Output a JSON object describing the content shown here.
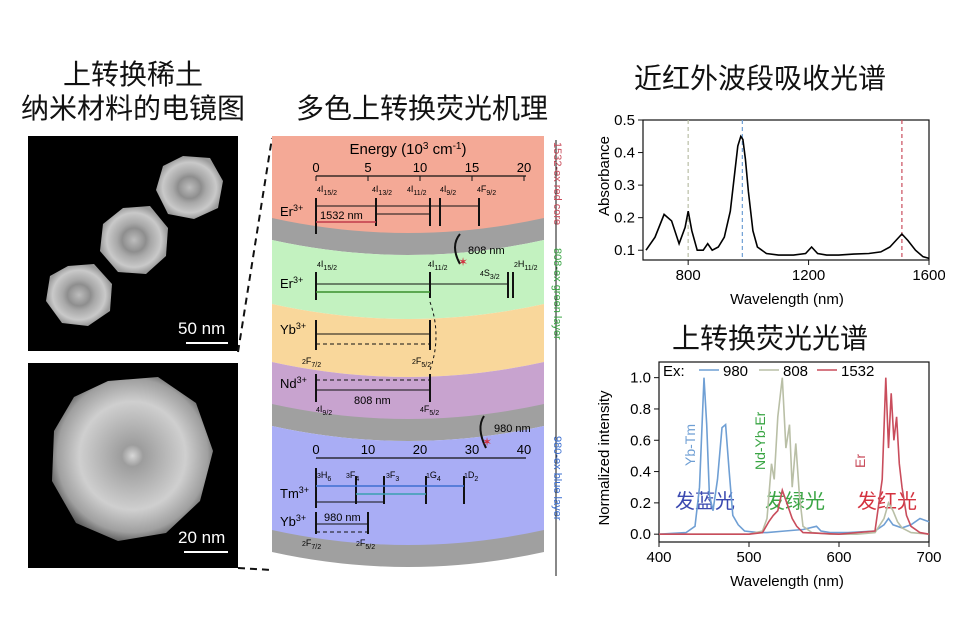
{
  "titles": {
    "em_line1": "上转换稀土",
    "em_line2": "纳米材料的电镜图",
    "mechanism": "多色上转换荧光机理",
    "absorption": "近红外波段吸收光谱",
    "emission": "上转换荧光光谱"
  },
  "em_images": {
    "top_scale": "50 nm",
    "bottom_scale": "20 nm"
  },
  "mechanism": {
    "energy_axis_label": "Energy (10",
    "energy_axis_sup": "3",
    "energy_axis_unit": " cm",
    "energy_axis_sup2": "-1",
    "energy_axis_close": ")",
    "top_ticks": [
      "0",
      "5",
      "10",
      "15",
      "20"
    ],
    "bottom_ticks": [
      "0",
      "10",
      "20",
      "30",
      "40"
    ],
    "ions": {
      "er_red": "Er",
      "er_green": "Er",
      "yb1": "Yb",
      "nd": "Nd",
      "tm": "Tm",
      "yb2": "Yb",
      "charge": "3+"
    },
    "levels_red": [
      "4",
      "I",
      "15/2",
      "4",
      "I",
      "13/2",
      "4",
      "I",
      "11/2",
      "4",
      "I",
      "9/2",
      "4",
      "F",
      "9/2"
    ],
    "label_1532": "1532 nm",
    "label_808_arrow": "808 nm",
    "levels_green": [
      "4",
      "I",
      "15/2",
      "4",
      "I",
      "11/2",
      "4",
      "S",
      "3/2",
      "2",
      "H",
      "11/2"
    ],
    "levels_yb": [
      "2",
      "F",
      "7/2",
      "2",
      "F",
      "5/2"
    ],
    "levels_nd": [
      "4",
      "I",
      "9/2",
      "4",
      "F",
      "5/2"
    ],
    "label_808": "808 nm",
    "label_980_arrow": "980 nm",
    "levels_tm": [
      "3",
      "H",
      "6",
      "3",
      "F",
      "4",
      "3",
      "F",
      "3",
      "1",
      "G",
      "4",
      "1",
      "D",
      "2"
    ],
    "label_980": "980 nm",
    "levels_yb2": [
      "2",
      "F",
      "7/2",
      "2",
      "F",
      "5/2"
    ],
    "side_labels": {
      "red": "1532-ex red core",
      "green": "808-ex green layer",
      "blue": "980-ex blue layer"
    }
  },
  "colors": {
    "red_layer": "#f4a996",
    "green_layer": "#c3f2c0",
    "yb_layer": "#f9d79b",
    "nd_layer": "#c8a3cf",
    "blue_layer": "#a9adf5",
    "gray_shell": "#a0a0a0",
    "abs_curve": "#000000",
    "ex_980": "#6f9fd4",
    "ex_808": "#b9bfa6",
    "ex_1532": "#c94d5c",
    "text_blue": "#3b49b0",
    "text_green": "#3aa544",
    "text_red": "#d4323f"
  },
  "chart_data": [
    {
      "type": "line",
      "title": "近红外波段吸收光谱",
      "xlabel": "Wavelength (nm)",
      "ylabel": "Absorbance",
      "xlim": [
        650,
        1600
      ],
      "ylim": [
        0.07,
        0.5
      ],
      "xticks": [
        "800",
        "1200",
        "1600"
      ],
      "yticks": [
        "0.1",
        "0.2",
        "0.3",
        "0.4",
        "0.5"
      ],
      "vlines": [
        800,
        980,
        1510
      ],
      "series": [
        {
          "x": [
            660,
            690,
            720,
            745,
            770,
            790,
            800,
            812,
            830,
            850,
            865,
            880,
            900,
            920,
            940,
            955,
            965,
            975,
            982,
            990,
            1000,
            1015,
            1030,
            1060,
            1100,
            1150,
            1190,
            1210,
            1230,
            1260,
            1300,
            1350,
            1400,
            1440,
            1470,
            1490,
            1510,
            1530,
            1555,
            1580,
            1600
          ],
          "y": [
            0.1,
            0.14,
            0.21,
            0.19,
            0.12,
            0.17,
            0.22,
            0.16,
            0.1,
            0.1,
            0.12,
            0.1,
            0.11,
            0.14,
            0.22,
            0.34,
            0.42,
            0.45,
            0.44,
            0.38,
            0.28,
            0.16,
            0.11,
            0.09,
            0.085,
            0.085,
            0.09,
            0.11,
            0.09,
            0.085,
            0.085,
            0.088,
            0.09,
            0.095,
            0.11,
            0.13,
            0.15,
            0.13,
            0.1,
            0.08,
            0.075
          ]
        }
      ]
    },
    {
      "type": "line",
      "title": "上转换荧光光谱",
      "xlabel": "Wavelength (nm)",
      "ylabel": "Normalized intensity",
      "xlim": [
        400,
        700
      ],
      "ylim": [
        -0.05,
        1.1
      ],
      "xticks": [
        "400",
        "500",
        "600",
        "700"
      ],
      "yticks": [
        "0.0",
        "0.2",
        "0.4",
        "0.6",
        "0.8",
        "1.0"
      ],
      "legend_prefix": "Ex:",
      "annotations": [
        "Yb-Tm",
        "Nd-Yb-Er",
        "Er",
        "发蓝光",
        "发绿光",
        "发红光"
      ],
      "series": [
        {
          "name": "980",
          "x": [
            400,
            430,
            440,
            445,
            450,
            453,
            456,
            460,
            465,
            470,
            474,
            478,
            482,
            488,
            495,
            510,
            520,
            540,
            560,
            575,
            580,
            590,
            610,
            640,
            650,
            655,
            660,
            670,
            680,
            690,
            700
          ],
          "y": [
            0.0,
            0.01,
            0.05,
            0.3,
            1.0,
            0.7,
            0.25,
            0.15,
            0.35,
            0.68,
            0.7,
            0.4,
            0.12,
            0.06,
            0.02,
            0.01,
            0.01,
            0.02,
            0.03,
            0.05,
            0.02,
            0.01,
            0.01,
            0.02,
            0.06,
            0.1,
            0.06,
            0.04,
            0.06,
            0.1,
            0.08
          ]
        },
        {
          "name": "808",
          "x": [
            400,
            450,
            500,
            515,
            520,
            525,
            528,
            532,
            537,
            541,
            545,
            548,
            552,
            556,
            560,
            570,
            590,
            620,
            640,
            650,
            655,
            660,
            665,
            670,
            680,
            700
          ],
          "y": [
            0.0,
            0.0,
            0.0,
            0.02,
            0.1,
            0.45,
            0.35,
            0.75,
            1.0,
            0.55,
            0.7,
            0.3,
            0.58,
            0.25,
            0.05,
            0.01,
            0.0,
            0.0,
            0.01,
            0.1,
            0.2,
            0.15,
            0.08,
            0.04,
            0.01,
            0.0
          ]
        },
        {
          "name": "1532",
          "x": [
            400,
            500,
            515,
            522,
            527,
            532,
            537,
            542,
            548,
            553,
            560,
            600,
            640,
            648,
            652,
            655,
            658,
            661,
            664,
            667,
            670,
            675,
            680,
            690,
            700
          ],
          "y": [
            0.0,
            0.0,
            0.01,
            0.08,
            0.12,
            0.15,
            0.28,
            0.2,
            0.1,
            0.05,
            0.01,
            0.0,
            0.02,
            0.35,
            1.0,
            0.55,
            0.9,
            0.6,
            0.75,
            0.45,
            0.3,
            0.12,
            0.05,
            0.01,
            0.0
          ]
        }
      ]
    }
  ]
}
